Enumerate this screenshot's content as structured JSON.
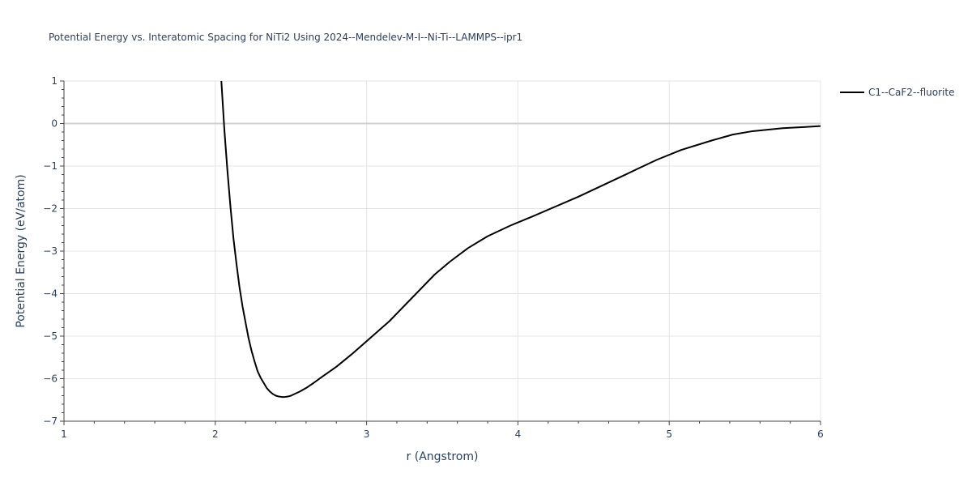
{
  "chart_data": {
    "type": "line",
    "title": "Potential Energy vs. Interatomic Spacing for NiTi2 Using 2024--Mendelev-M-I--Ni-Ti--LAMMPS--ipr1",
    "xlabel": "r (Angstrom)",
    "ylabel": "Potential Energy (eV/atom)",
    "xlim": [
      1,
      6
    ],
    "ylim": [
      -7,
      1
    ],
    "xticks": [
      "1",
      "2",
      "3",
      "4",
      "5",
      "6"
    ],
    "yticks": [
      "1",
      "0",
      "−1",
      "−2",
      "−3",
      "−4",
      "−5",
      "−6",
      "−7"
    ],
    "grid": true,
    "legend_position": "top-right",
    "series": [
      {
        "name": "C1--CaF2--fluorite",
        "color": "#000000",
        "x": [
          2.04,
          2.06,
          2.08,
          2.1,
          2.12,
          2.14,
          2.16,
          2.18,
          2.2,
          2.22,
          2.24,
          2.26,
          2.28,
          2.3,
          2.32,
          2.34,
          2.36,
          2.38,
          2.4,
          2.42,
          2.44,
          2.46,
          2.48,
          2.5,
          2.53,
          2.56,
          2.6,
          2.65,
          2.7,
          2.8,
          2.9,
          3.0,
          3.15,
          3.3,
          3.45,
          3.55,
          3.67,
          3.8,
          3.95,
          4.1,
          4.25,
          4.4,
          4.55,
          4.7,
          4.8,
          4.92,
          5.08,
          5.28,
          5.42,
          5.55,
          5.75,
          5.9,
          6.0
        ],
        "y": [
          1.0,
          -0.15,
          -1.1,
          -1.95,
          -2.7,
          -3.3,
          -3.85,
          -4.3,
          -4.68,
          -5.05,
          -5.35,
          -5.6,
          -5.83,
          -5.98,
          -6.1,
          -6.22,
          -6.3,
          -6.36,
          -6.4,
          -6.42,
          -6.43,
          -6.43,
          -6.42,
          -6.4,
          -6.35,
          -6.3,
          -6.22,
          -6.1,
          -5.97,
          -5.72,
          -5.43,
          -5.12,
          -4.65,
          -4.1,
          -3.55,
          -3.25,
          -2.93,
          -2.65,
          -2.4,
          -2.18,
          -1.95,
          -1.72,
          -1.47,
          -1.22,
          -1.05,
          -0.85,
          -0.62,
          -0.4,
          -0.26,
          -0.18,
          -0.11,
          -0.08,
          -0.06
        ]
      }
    ]
  }
}
